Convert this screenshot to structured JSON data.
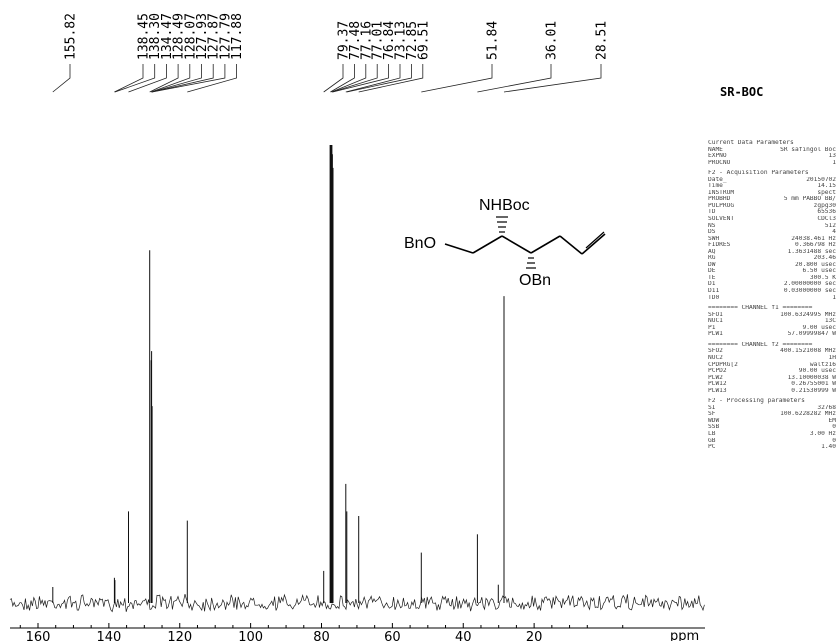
{
  "sample_title": "SR-BOC",
  "structure_labels": {
    "nhboc": "NHBoc",
    "bno": "BnO",
    "obn": "OBn"
  },
  "chart_data": {
    "type": "line",
    "title": "",
    "xlabel": "ppm",
    "xlim": [
      170,
      -2
    ],
    "x_reversed": true,
    "x_ticks": [
      160,
      140,
      120,
      100,
      80,
      60,
      40,
      20
    ],
    "peaks": [
      {
        "ppm": 155.82,
        "height": 0.035
      },
      {
        "ppm": 138.45,
        "height": 0.055
      },
      {
        "ppm": 138.3,
        "height": 0.05
      },
      {
        "ppm": 134.47,
        "height": 0.2
      },
      {
        "ppm": 128.49,
        "height": 0.77
      },
      {
        "ppm": 128.07,
        "height": 0.53
      },
      {
        "ppm": 127.93,
        "height": 0.55
      },
      {
        "ppm": 127.87,
        "height": 0.4
      },
      {
        "ppm": 127.79,
        "height": 0.43
      },
      {
        "ppm": 117.88,
        "height": 0.18
      },
      {
        "ppm": 79.37,
        "height": 0.07
      },
      {
        "ppm": 77.48,
        "height": 1.0
      },
      {
        "ppm": 77.16,
        "height": 1.0
      },
      {
        "ppm": 77.01,
        "height": 0.98
      },
      {
        "ppm": 76.84,
        "height": 0.95
      },
      {
        "ppm": 73.13,
        "height": 0.26
      },
      {
        "ppm": 72.85,
        "height": 0.2
      },
      {
        "ppm": 69.51,
        "height": 0.19
      },
      {
        "ppm": 51.84,
        "height": 0.11
      },
      {
        "ppm": 36.01,
        "height": 0.15
      },
      {
        "ppm": 30.1,
        "height": 0.04
      },
      {
        "ppm": 28.51,
        "height": 0.67
      }
    ],
    "peak_labels": [
      "155.82",
      "138.45",
      "138.30",
      "134.47",
      "128.49",
      "128.07",
      "127.93",
      "127.87",
      "127.79",
      "117.88",
      "79.37",
      "77.48",
      "77.16",
      "77.01",
      "76.84",
      "73.13",
      "72.85",
      "69.51",
      "51.84",
      "36.01",
      "28.51"
    ]
  },
  "parameters": [
    {
      "type": "header",
      "text": "Current Data Parameters"
    },
    {
      "name": "NAME",
      "value": "SR safingol Boc"
    },
    {
      "name": "EXPNO",
      "value": "13"
    },
    {
      "name": "PROCNO",
      "value": "1"
    },
    {
      "type": "header",
      "text": "F2 - Acquisition Parameters"
    },
    {
      "name": "Date_",
      "value": "20150702"
    },
    {
      "name": "Time",
      "value": "14.15"
    },
    {
      "name": "INSTRUM",
      "value": "spect"
    },
    {
      "name": "PROBHD",
      "value": "5 mm PABBO BB/"
    },
    {
      "name": "PULPROG",
      "value": "zgpg30"
    },
    {
      "name": "TD",
      "value": "65536"
    },
    {
      "name": "SOLVENT",
      "value": "CDCl3"
    },
    {
      "name": "NS",
      "value": "512"
    },
    {
      "name": "DS",
      "value": "4"
    },
    {
      "name": "SWH",
      "value": "24038.461 Hz"
    },
    {
      "name": "FIDRES",
      "value": "0.366798 Hz"
    },
    {
      "name": "AQ",
      "value": "1.3631488 sec"
    },
    {
      "name": "RG",
      "value": "203.46"
    },
    {
      "name": "DW",
      "value": "20.800 usec"
    },
    {
      "name": "DE",
      "value": "6.50 usec"
    },
    {
      "name": "TE",
      "value": "300.5 K"
    },
    {
      "name": "D1",
      "value": "2.00000000 sec"
    },
    {
      "name": "D11",
      "value": "0.03000000 sec"
    },
    {
      "name": "TD0",
      "value": "1"
    },
    {
      "type": "header",
      "text": "======== CHANNEL f1 ========"
    },
    {
      "name": "SFO1",
      "value": "100.6324995 MHz"
    },
    {
      "name": "NUC1",
      "value": "13C"
    },
    {
      "name": "P1",
      "value": "9.00 usec"
    },
    {
      "name": "PLW1",
      "value": "57.09999847 W"
    },
    {
      "type": "header",
      "text": "======== CHANNEL f2 ========"
    },
    {
      "name": "SFO2",
      "value": "400.1521008 MHz"
    },
    {
      "name": "NUC2",
      "value": "1H"
    },
    {
      "name": "CPDPRG[2",
      "value": "waltz16"
    },
    {
      "name": "PCPD2",
      "value": "90.00 usec"
    },
    {
      "name": "PLW2",
      "value": "13.10000038 W"
    },
    {
      "name": "PLW12",
      "value": "0.26755001 W"
    },
    {
      "name": "PLW13",
      "value": "0.21530999 W"
    },
    {
      "type": "header",
      "text": "F2 - Processing parameters"
    },
    {
      "name": "SI",
      "value": "32768"
    },
    {
      "name": "SF",
      "value": "100.6228282 MHz"
    },
    {
      "name": "WDW",
      "value": "EM"
    },
    {
      "name": "SSB",
      "value": "0"
    },
    {
      "name": "LB",
      "value": "3.00 Hz"
    },
    {
      "name": "GB",
      "value": "0"
    },
    {
      "name": "PC",
      "value": "1.40"
    }
  ]
}
